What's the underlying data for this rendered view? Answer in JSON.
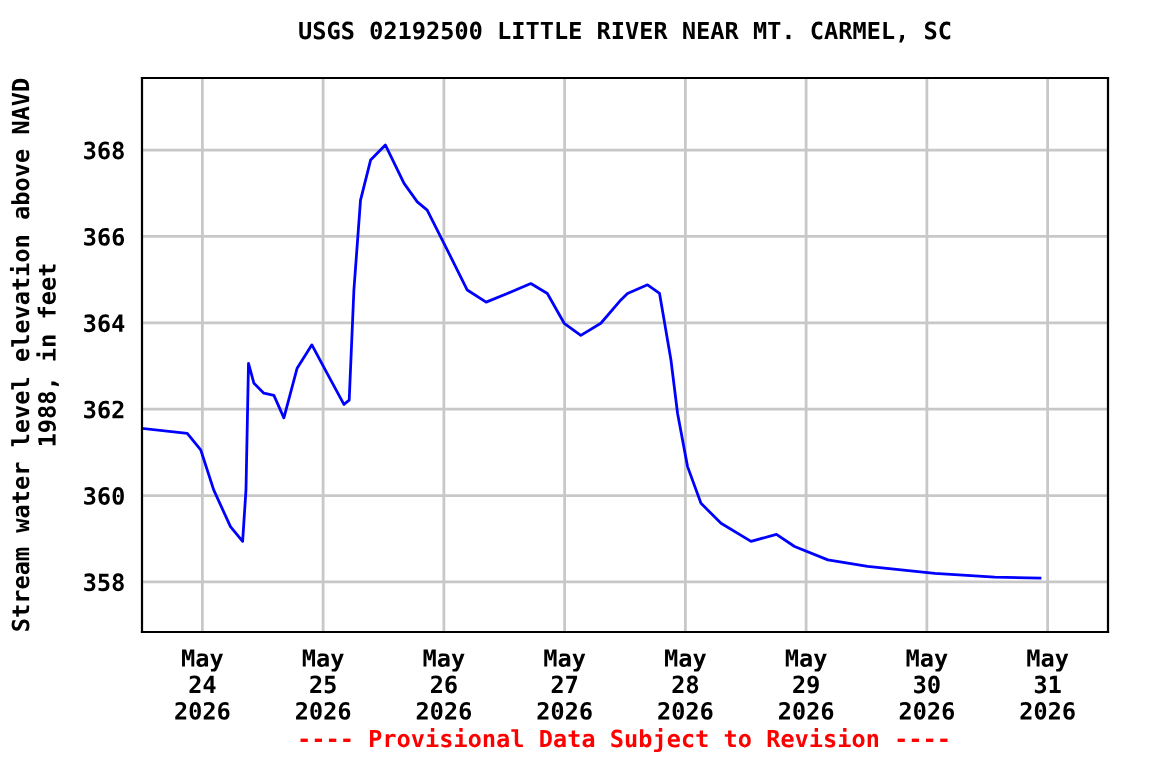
{
  "chart_data": {
    "type": "line",
    "title": "USGS 02192500 LITTLE RIVER NEAR MT. CARMEL, SC",
    "ylabel": "Stream water level elevation above NAVD\n1988, in feet",
    "annotations": [
      "---- Provisional Data Subject to Revision ----"
    ],
    "x": [
      "2026-05-23T12:20",
      "2026-05-23T21:00",
      "2026-05-23T23:40",
      "2026-05-24T02:15",
      "2026-05-24T05:35",
      "2026-05-24T08:00",
      "2026-05-24T08:40",
      "2026-05-24T09:10",
      "2026-05-24T10:15",
      "2026-05-24T12:13",
      "2026-05-24T14:13",
      "2026-05-24T16:12",
      "2026-05-24T18:50",
      "2026-05-24T21:46",
      "2026-05-25T00:48",
      "2026-05-25T04:08",
      "2026-05-25T05:11",
      "2026-05-25T06:07",
      "2026-05-25T07:26",
      "2026-05-25T09:26",
      "2026-05-25T12:22",
      "2026-05-25T16:05",
      "2026-05-25T18:43",
      "2026-05-25T20:41",
      "2026-05-26T00:40",
      "2026-05-26T04:39",
      "2026-05-26T08:24",
      "2026-05-26T12:37",
      "2026-05-26T17:17",
      "2026-05-26T20:34",
      "2026-05-26T23:55",
      "2026-05-27T03:13",
      "2026-05-27T07:12",
      "2026-05-27T11:11",
      "2026-05-27T12:30",
      "2026-05-27T16:29",
      "2026-05-27T18:52",
      "2026-05-27T21:08",
      "2026-05-27T22:27",
      "2026-05-28T00:26",
      "2026-05-28T03:06",
      "2026-05-28T07:05",
      "2026-05-28T13:03",
      "2026-05-28T18:06",
      "2026-05-28T21:42",
      "2026-05-29T04:19",
      "2026-05-29T12:14",
      "2026-05-30T01:34",
      "2026-05-30T13:29",
      "2026-05-30T22:29"
    ],
    "series": [
      {
        "color": "#0000ff",
        "values": [
          361.55,
          361.44,
          361.06,
          360.13,
          359.28,
          358.94,
          360.13,
          363.06,
          362.6,
          362.37,
          362.32,
          361.8,
          362.95,
          363.49,
          362.83,
          362.11,
          362.21,
          364.76,
          366.84,
          367.77,
          368.12,
          367.23,
          366.8,
          366.61,
          365.69,
          364.76,
          364.48,
          364.68,
          364.91,
          364.68,
          363.99,
          363.71,
          363.99,
          364.53,
          364.68,
          364.88,
          364.68,
          363.14,
          361.9,
          360.67,
          359.82,
          359.36,
          358.94,
          359.1,
          358.82,
          358.51,
          358.36,
          358.2,
          358.11,
          358.09
        ]
      }
    ],
    "xlim": [
      "2026-05-23T12:00",
      "2026-05-31T12:00"
    ],
    "xticks": [
      {
        "value": "2026-05-24",
        "label": "May\n24\n2026"
      },
      {
        "value": "2026-05-25",
        "label": "May\n25\n2026"
      },
      {
        "value": "2026-05-26",
        "label": "May\n26\n2026"
      },
      {
        "value": "2026-05-27",
        "label": "May\n27\n2026"
      },
      {
        "value": "2026-05-28",
        "label": "May\n28\n2026"
      },
      {
        "value": "2026-05-29",
        "label": "May\n29\n2026"
      },
      {
        "value": "2026-05-30",
        "label": "May\n30\n2026"
      },
      {
        "value": "2026-05-31",
        "label": "May\n31\n2026"
      }
    ],
    "ylim": [
      356.84,
      369.67
    ],
    "yticks": [
      358,
      360,
      362,
      364,
      366,
      368
    ],
    "grid": true,
    "line_style": "solid"
  }
}
